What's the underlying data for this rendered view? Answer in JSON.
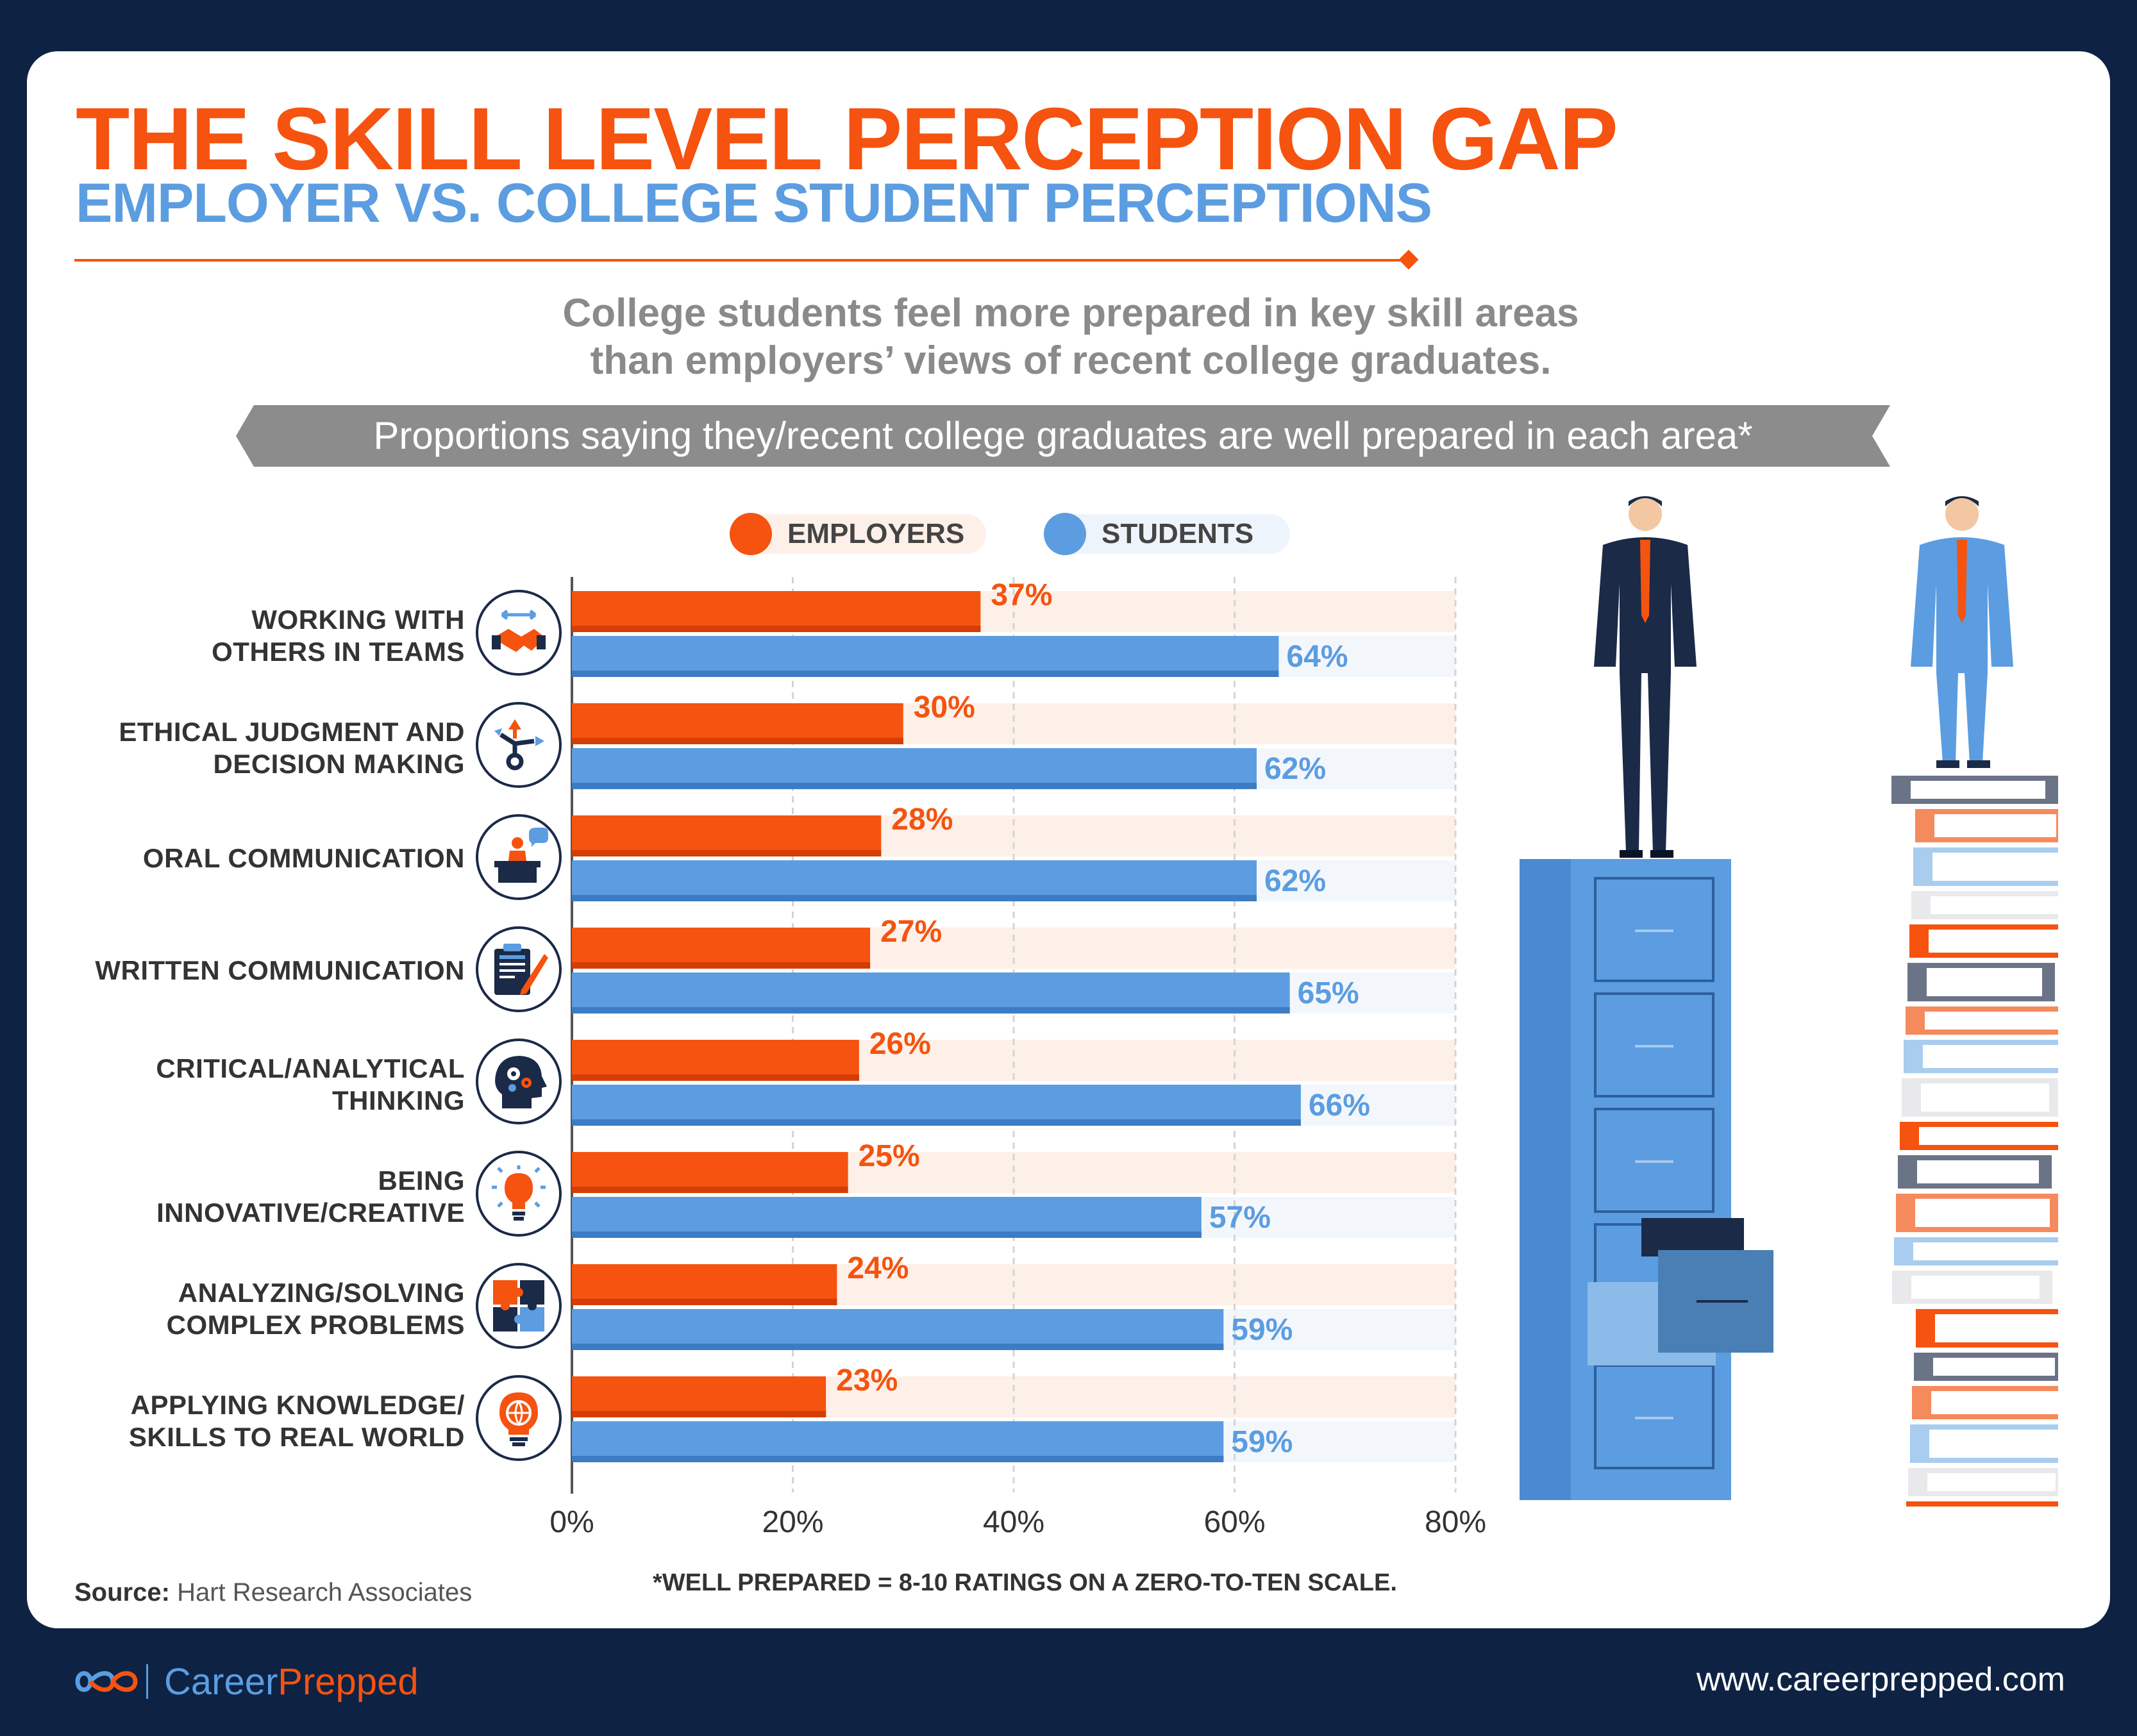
{
  "header": {
    "title": "THE SKILL LEVEL PERCEPTION GAP",
    "subtitle": "EMPLOYER VS. COLLEGE STUDENT PERCEPTIONS",
    "intro_line1": "College students feel more prepared in key skill areas",
    "intro_line2": "than employers’ views of recent college graduates.",
    "banner": "Proportions saying they/recent college graduates are well prepared in each area*"
  },
  "colors": {
    "employers": "#f5530f",
    "students": "#5b9de0",
    "navy": "#0e2244"
  },
  "chart_data": {
    "type": "bar",
    "orientation": "horizontal",
    "categories": [
      {
        "line1": "WORKING WITH",
        "line2": "OTHERS IN TEAMS",
        "icon": "handshake-icon"
      },
      {
        "line1": "ETHICAL JUDGMENT AND",
        "line2": "DECISION MAKING",
        "icon": "decision-arrows-icon"
      },
      {
        "line1": "ORAL COMMUNICATION",
        "line2": "",
        "icon": "speaker-podium-icon"
      },
      {
        "line1": "WRITTEN COMMUNICATION",
        "line2": "",
        "icon": "document-pen-icon"
      },
      {
        "line1": "CRITICAL/ANALYTICAL",
        "line2": "THINKING",
        "icon": "head-gears-icon"
      },
      {
        "line1": "BEING",
        "line2": "INNOVATIVE/CREATIVE",
        "icon": "lightbulb-icon"
      },
      {
        "line1": "ANALYZING/SOLVING",
        "line2": "COMPLEX PROBLEMS",
        "icon": "puzzle-icon"
      },
      {
        "line1": "APPLYING KNOWLEDGE/",
        "line2": "SKILLS TO REAL WORLD",
        "icon": "globe-bulb-icon"
      }
    ],
    "series": [
      {
        "name": "EMPLOYERS",
        "values": [
          37,
          30,
          28,
          27,
          26,
          25,
          24,
          23
        ],
        "labels": [
          "37%",
          "30%",
          "28%",
          "27%",
          "26%",
          "25%",
          "24%",
          "23%"
        ]
      },
      {
        "name": "STUDENTS",
        "values": [
          64,
          62,
          62,
          65,
          66,
          57,
          59,
          59
        ],
        "labels": [
          "64%",
          "62%",
          "62%",
          "65%",
          "66%",
          "57%",
          "59%",
          "59%"
        ]
      }
    ],
    "xlim": [
      0,
      80
    ],
    "xticks": [
      "0%",
      "20%",
      "40%",
      "60%",
      "80%"
    ],
    "grid": true,
    "legend_position": "top-center"
  },
  "footer": {
    "source_label": "Source:",
    "source_text": "Hart Research Associates",
    "footnote": "*WELL PREPARED = 8-10 RATINGS ON A ZERO-TO-TEN SCALE.",
    "brand_a": "Career",
    "brand_b": "Prepped",
    "website": "www.careerprepped.com"
  }
}
